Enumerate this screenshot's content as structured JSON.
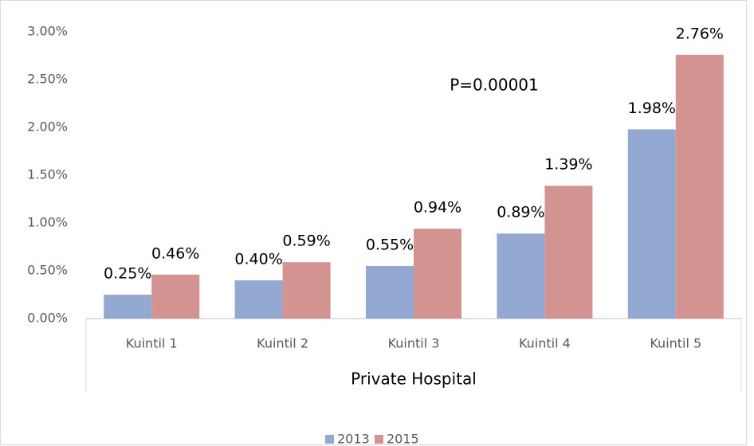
{
  "chart_data": {
    "type": "bar",
    "categories": [
      "Kuintil 1",
      "Kuintil 2",
      "Kuintil 3",
      "Kuintil 4",
      "Kuintil 5"
    ],
    "group_label": "Private Hospital",
    "annotation": "P=0.00001",
    "series": [
      {
        "name": "2013",
        "color": "#94a9d2",
        "values": [
          0.25,
          0.4,
          0.55,
          0.89,
          1.98
        ],
        "value_labels": [
          "0.25%",
          "0.40%",
          "0.55%",
          "0.89%",
          "1.98%"
        ]
      },
      {
        "name": "2015",
        "color": "#d39391",
        "values": [
          0.46,
          0.59,
          0.94,
          1.39,
          2.76
        ],
        "value_labels": [
          "0.46%",
          "0.59%",
          "0.94%",
          "1.39%",
          "2.76%"
        ]
      }
    ],
    "ylim": [
      0,
      3
    ],
    "yticks": [
      {
        "value": 0,
        "label": "0.00%"
      },
      {
        "value": 0.5,
        "label": "0.50%"
      },
      {
        "value": 1,
        "label": "1.00%"
      },
      {
        "value": 1.5,
        "label": "1.50%"
      },
      {
        "value": 2,
        "label": "2.00%"
      },
      {
        "value": 2.5,
        "label": "2.50%"
      },
      {
        "value": 3,
        "label": "3.00%"
      }
    ],
    "grid": false,
    "legend": "bottom"
  }
}
